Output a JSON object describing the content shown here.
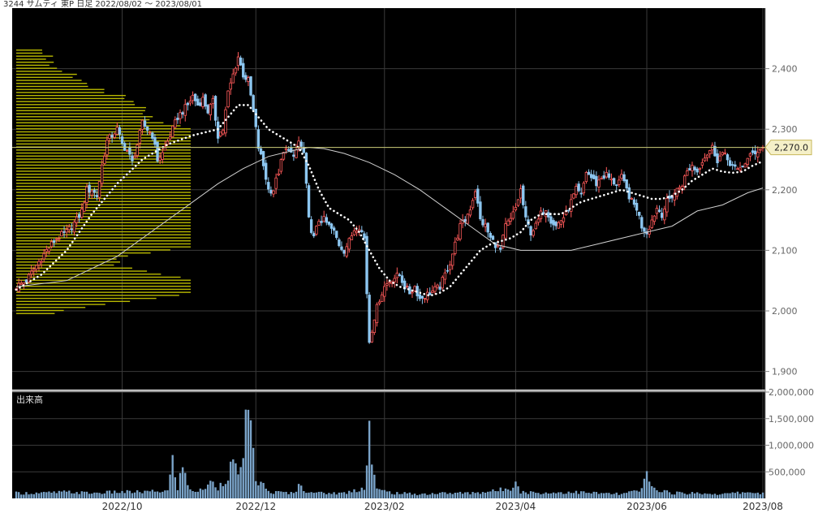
{
  "header": {
    "title": "3244 サムティ 東P 日足 2022/08/02 ～ 2023/08/01"
  },
  "chart_data": {
    "type": "candlestick",
    "title": "3244 サムティ 東P 日足 2022/08/02 ～ 2023/08/01",
    "price_axis": {
      "ylim": [
        1870,
        2500
      ],
      "ticks": [
        "1,900",
        "2,000",
        "2,100",
        "2,200",
        "2,300",
        "2,400"
      ],
      "tick_values": [
        1900,
        2000,
        2100,
        2200,
        2300,
        2400
      ]
    },
    "volume_axis": {
      "label": "出来高",
      "ylim": [
        0,
        2000000
      ],
      "ticks": [
        "500,000",
        "1,000,000",
        "1,500,000",
        "2,000,000"
      ],
      "tick_values": [
        500000,
        1000000,
        1500000,
        2000000
      ]
    },
    "x_ticks": [
      "2022/10",
      "2022/12",
      "2023/02",
      "2023/04",
      "2023/06",
      "2023/08"
    ],
    "last_price_label": "2,270.0",
    "last_price": 2270,
    "colors": {
      "background": "#000000",
      "up": "#ff5a5a",
      "down": "#8cc6f0",
      "ma_short": "#ffffff",
      "ma_long": "#cfcfcf",
      "volume": "#7aa3c8",
      "volume_profile": "#b8b800",
      "label_bg": "#f5f0c8"
    },
    "close_path": [
      [
        0,
        2040
      ],
      [
        4,
        2050
      ],
      [
        8,
        2075
      ],
      [
        12,
        2100
      ],
      [
        16,
        2120
      ],
      [
        20,
        2130
      ],
      [
        24,
        2150
      ],
      [
        26,
        2165
      ],
      [
        28,
        2200
      ],
      [
        30,
        2200
      ],
      [
        32,
        2190
      ],
      [
        34,
        2240
      ],
      [
        36,
        2280
      ],
      [
        38,
        2290
      ],
      [
        40,
        2300
      ],
      [
        42,
        2275
      ],
      [
        44,
        2265
      ],
      [
        46,
        2245
      ],
      [
        48,
        2275
      ],
      [
        50,
        2310
      ],
      [
        52,
        2300
      ],
      [
        54,
        2290
      ],
      [
        56,
        2250
      ],
      [
        58,
        2260
      ],
      [
        60,
        2280
      ],
      [
        62,
        2300
      ],
      [
        64,
        2320
      ],
      [
        66,
        2330
      ],
      [
        68,
        2340
      ],
      [
        70,
        2355
      ],
      [
        72,
        2340
      ],
      [
        74,
        2350
      ],
      [
        76,
        2330
      ],
      [
        78,
        2345
      ],
      [
        80,
        2290
      ],
      [
        82,
        2300
      ],
      [
        84,
        2360
      ],
      [
        86,
        2390
      ],
      [
        88,
        2420
      ],
      [
        90,
        2390
      ],
      [
        92,
        2380
      ],
      [
        94,
        2330
      ],
      [
        96,
        2270
      ],
      [
        98,
        2240
      ],
      [
        100,
        2200
      ],
      [
        102,
        2200
      ],
      [
        104,
        2230
      ],
      [
        106,
        2260
      ],
      [
        108,
        2270
      ],
      [
        110,
        2250
      ],
      [
        112,
        2280
      ],
      [
        114,
        2260
      ],
      [
        116,
        2150
      ],
      [
        118,
        2120
      ],
      [
        120,
        2150
      ],
      [
        122,
        2150
      ],
      [
        124,
        2140
      ],
      [
        126,
        2130
      ],
      [
        128,
        2110
      ],
      [
        130,
        2100
      ],
      [
        132,
        2115
      ],
      [
        134,
        2135
      ],
      [
        136,
        2140
      ],
      [
        138,
        2120
      ],
      [
        139,
        2030
      ],
      [
        140,
        1950
      ],
      [
        141,
        1970
      ],
      [
        142,
        1990
      ],
      [
        144,
        2020
      ],
      [
        146,
        2040
      ],
      [
        148,
        2050
      ],
      [
        150,
        2055
      ],
      [
        152,
        2060
      ],
      [
        154,
        2040
      ],
      [
        156,
        2030
      ],
      [
        158,
        2040
      ],
      [
        160,
        2020
      ],
      [
        162,
        2025
      ],
      [
        164,
        2030
      ],
      [
        166,
        2035
      ],
      [
        168,
        2040
      ],
      [
        170,
        2060
      ],
      [
        172,
        2080
      ],
      [
        174,
        2110
      ],
      [
        176,
        2140
      ],
      [
        178,
        2150
      ],
      [
        180,
        2170
      ],
      [
        182,
        2200
      ],
      [
        184,
        2150
      ],
      [
        186,
        2140
      ],
      [
        188,
        2120
      ],
      [
        190,
        2110
      ],
      [
        192,
        2100
      ],
      [
        194,
        2140
      ],
      [
        196,
        2150
      ],
      [
        198,
        2170
      ],
      [
        200,
        2200
      ],
      [
        202,
        2150
      ],
      [
        204,
        2130
      ],
      [
        206,
        2140
      ],
      [
        208,
        2160
      ],
      [
        210,
        2170
      ],
      [
        212,
        2150
      ],
      [
        214,
        2140
      ],
      [
        216,
        2150
      ],
      [
        218,
        2160
      ],
      [
        220,
        2180
      ],
      [
        222,
        2200
      ],
      [
        224,
        2190
      ],
      [
        226,
        2230
      ],
      [
        228,
        2220
      ],
      [
        230,
        2210
      ],
      [
        232,
        2220
      ],
      [
        234,
        2225
      ],
      [
        236,
        2215
      ],
      [
        238,
        2210
      ],
      [
        240,
        2220
      ],
      [
        242,
        2200
      ],
      [
        244,
        2180
      ],
      [
        246,
        2170
      ],
      [
        248,
        2140
      ],
      [
        250,
        2130
      ],
      [
        252,
        2150
      ],
      [
        254,
        2170
      ],
      [
        256,
        2160
      ],
      [
        258,
        2180
      ],
      [
        260,
        2190
      ],
      [
        262,
        2200
      ],
      [
        264,
        2210
      ],
      [
        266,
        2230
      ],
      [
        268,
        2240
      ],
      [
        270,
        2230
      ],
      [
        272,
        2250
      ],
      [
        274,
        2260
      ],
      [
        276,
        2270
      ],
      [
        278,
        2250
      ],
      [
        280,
        2260
      ],
      [
        282,
        2250
      ],
      [
        284,
        2240
      ],
      [
        286,
        2230
      ],
      [
        288,
        2240
      ],
      [
        290,
        2250
      ],
      [
        292,
        2260
      ],
      [
        294,
        2265
      ],
      [
        296,
        2270
      ]
    ],
    "ma_short_path": [
      [
        0,
        2035
      ],
      [
        10,
        2060
      ],
      [
        20,
        2100
      ],
      [
        30,
        2160
      ],
      [
        40,
        2210
      ],
      [
        50,
        2250
      ],
      [
        60,
        2275
      ],
      [
        70,
        2290
      ],
      [
        80,
        2300
      ],
      [
        84,
        2320
      ],
      [
        88,
        2340
      ],
      [
        92,
        2340
      ],
      [
        96,
        2320
      ],
      [
        100,
        2300
      ],
      [
        104,
        2290
      ],
      [
        108,
        2280
      ],
      [
        112,
        2270
      ],
      [
        116,
        2240
      ],
      [
        120,
        2200
      ],
      [
        124,
        2170
      ],
      [
        128,
        2160
      ],
      [
        132,
        2150
      ],
      [
        136,
        2130
      ],
      [
        140,
        2100
      ],
      [
        144,
        2070
      ],
      [
        148,
        2050
      ],
      [
        152,
        2040
      ],
      [
        156,
        2035
      ],
      [
        160,
        2030
      ],
      [
        164,
        2025
      ],
      [
        168,
        2030
      ],
      [
        172,
        2040
      ],
      [
        176,
        2060
      ],
      [
        180,
        2080
      ],
      [
        184,
        2100
      ],
      [
        188,
        2110
      ],
      [
        192,
        2115
      ],
      [
        196,
        2120
      ],
      [
        200,
        2130
      ],
      [
        204,
        2150
      ],
      [
        208,
        2160
      ],
      [
        212,
        2160
      ],
      [
        216,
        2160
      ],
      [
        220,
        2170
      ],
      [
        224,
        2180
      ],
      [
        228,
        2185
      ],
      [
        232,
        2190
      ],
      [
        236,
        2195
      ],
      [
        240,
        2200
      ],
      [
        244,
        2195
      ],
      [
        248,
        2190
      ],
      [
        252,
        2185
      ],
      [
        256,
        2185
      ],
      [
        260,
        2190
      ],
      [
        264,
        2200
      ],
      [
        268,
        2215
      ],
      [
        272,
        2225
      ],
      [
        276,
        2235
      ],
      [
        280,
        2230
      ],
      [
        284,
        2228
      ],
      [
        288,
        2230
      ],
      [
        292,
        2240
      ],
      [
        296,
        2247
      ]
    ],
    "ma_long_path": [
      [
        0,
        2040
      ],
      [
        20,
        2050
      ],
      [
        40,
        2090
      ],
      [
        60,
        2150
      ],
      [
        70,
        2180
      ],
      [
        80,
        2210
      ],
      [
        90,
        2235
      ],
      [
        100,
        2255
      ],
      [
        110,
        2265
      ],
      [
        116,
        2270
      ],
      [
        122,
        2268
      ],
      [
        130,
        2260
      ],
      [
        140,
        2245
      ],
      [
        150,
        2225
      ],
      [
        160,
        2200
      ],
      [
        170,
        2170
      ],
      [
        180,
        2140
      ],
      [
        190,
        2110
      ],
      [
        200,
        2100
      ],
      [
        210,
        2100
      ],
      [
        220,
        2100
      ],
      [
        230,
        2110
      ],
      [
        240,
        2120
      ],
      [
        250,
        2130
      ],
      [
        260,
        2140
      ],
      [
        270,
        2165
      ],
      [
        280,
        2175
      ],
      [
        290,
        2195
      ],
      [
        296,
        2203
      ]
    ],
    "volume_path": [
      [
        0,
        0.05
      ],
      [
        10,
        0.05
      ],
      [
        20,
        0.06
      ],
      [
        30,
        0.05
      ],
      [
        40,
        0.06
      ],
      [
        50,
        0.06
      ],
      [
        60,
        0.07
      ],
      [
        62,
        0.34
      ],
      [
        64,
        0.1
      ],
      [
        66,
        0.3
      ],
      [
        68,
        0.12
      ],
      [
        70,
        0.08
      ],
      [
        72,
        0.06
      ],
      [
        76,
        0.12
      ],
      [
        78,
        0.16
      ],
      [
        80,
        0.1
      ],
      [
        84,
        0.22
      ],
      [
        86,
        0.35
      ],
      [
        88,
        0.18
      ],
      [
        92,
        0.8
      ],
      [
        93,
        0.58
      ],
      [
        95,
        0.18
      ],
      [
        98,
        0.12
      ],
      [
        100,
        0.06
      ],
      [
        110,
        0.05
      ],
      [
        112,
        0.12
      ],
      [
        114,
        0.08
      ],
      [
        120,
        0.05
      ],
      [
        130,
        0.05
      ],
      [
        138,
        0.1
      ],
      [
        140,
        0.68
      ],
      [
        141,
        0.34
      ],
      [
        143,
        0.08
      ],
      [
        150,
        0.05
      ],
      [
        160,
        0.04
      ],
      [
        170,
        0.05
      ],
      [
        180,
        0.05
      ],
      [
        190,
        0.07
      ],
      [
        196,
        0.1
      ],
      [
        198,
        0.18
      ],
      [
        200,
        0.06
      ],
      [
        210,
        0.05
      ],
      [
        220,
        0.06
      ],
      [
        230,
        0.05
      ],
      [
        240,
        0.04
      ],
      [
        248,
        0.08
      ],
      [
        250,
        0.23
      ],
      [
        252,
        0.1
      ],
      [
        260,
        0.05
      ],
      [
        270,
        0.05
      ],
      [
        280,
        0.04
      ],
      [
        290,
        0.06
      ],
      [
        296,
        0.05
      ]
    ]
  }
}
